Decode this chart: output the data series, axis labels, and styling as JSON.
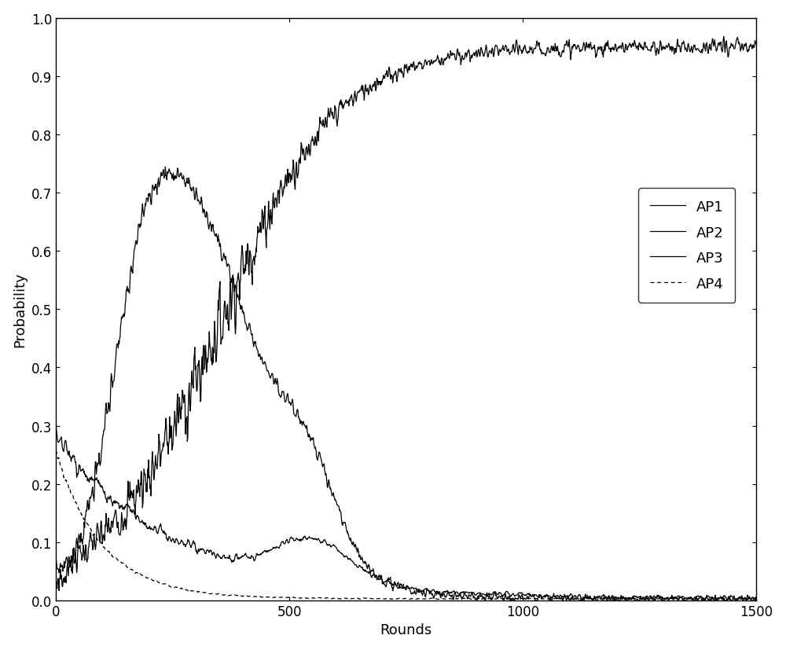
{
  "title": "",
  "xlabel": "Rounds",
  "ylabel": "Probability",
  "xlim": [
    0,
    1500
  ],
  "ylim": [
    0,
    1
  ],
  "yticks": [
    0,
    0.1,
    0.2,
    0.3,
    0.4,
    0.5,
    0.6,
    0.7,
    0.8,
    0.9,
    1
  ],
  "xticks": [
    0,
    500,
    1000,
    1500
  ],
  "n_rounds": 1500,
  "legend_labels": [
    "AP1",
    "AP2",
    "AP3",
    "AP4"
  ],
  "legend_loc": "center right",
  "line_color": "#000000",
  "background_color": "#ffffff",
  "figsize": [
    10.0,
    8.28
  ],
  "dpi": 100
}
